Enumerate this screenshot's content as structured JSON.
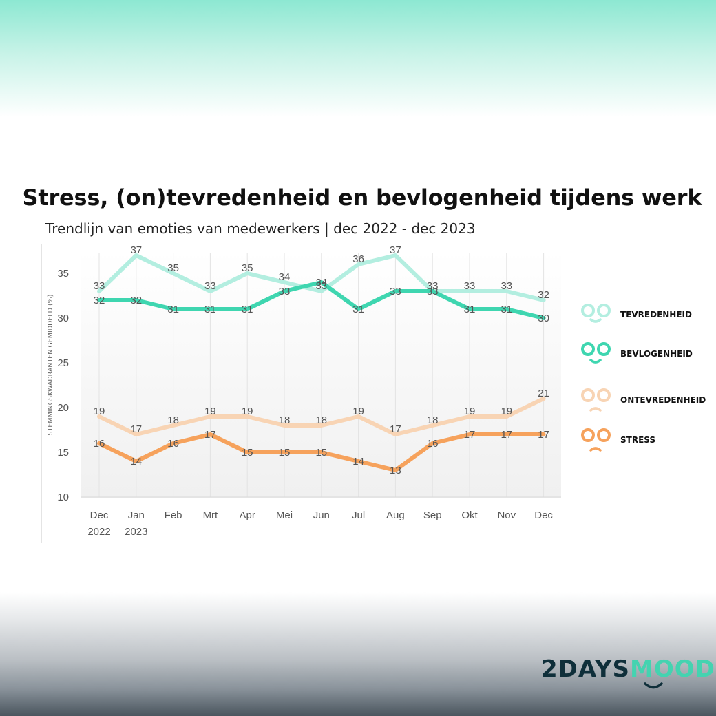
{
  "header": {
    "title": "Stress, (on)tevredenheid en bevlogenheid tijdens werk",
    "subtitle": "Trendlijn van emoties van medewerkers | dec 2022 - dec 2023"
  },
  "brand": {
    "part1": "2DAYS",
    "part2": "MOOD"
  },
  "colors": {
    "tevredenheid": "#b3eee0",
    "bevlogenheid": "#3fd6b0",
    "ontevredenheid": "#f8d4b4",
    "stress": "#f6a25c"
  },
  "chart_data": {
    "type": "line",
    "title": "Stress, (on)tevredenheid en bevlogenheid tijdens werk",
    "subtitle": "Trendlijn van emoties van medewerkers | dec 2022 - dec 2023",
    "ylabel": "STEMMINGSKWADRANTEN GEMIDDELD (%)",
    "xlabel": "",
    "ylim": [
      10,
      37
    ],
    "yticks": [
      10,
      15,
      20,
      25,
      30,
      35
    ],
    "grid": "vertical",
    "legend": "right",
    "categories": [
      [
        "Dec",
        "2022"
      ],
      [
        "Jan",
        "2023"
      ],
      [
        "Feb"
      ],
      [
        "Mrt"
      ],
      [
        "Apr"
      ],
      [
        "Mei"
      ],
      [
        "Jun"
      ],
      [
        "Jul"
      ],
      [
        "Aug"
      ],
      [
        "Sep"
      ],
      [
        "Okt"
      ],
      [
        "Nov"
      ],
      [
        "Dec"
      ]
    ],
    "series": [
      {
        "name": "TEVREDENHEID",
        "color": "#b3eee0",
        "label_pos": "above",
        "values": [
          33,
          37,
          35,
          33,
          35,
          34,
          33,
          36,
          37,
          33,
          33,
          33,
          32
        ]
      },
      {
        "name": "BEVLOGENHEID",
        "color": "#3fd6b0",
        "label_pos": "center",
        "values": [
          32,
          32,
          31,
          31,
          31,
          33,
          34,
          31,
          33,
          33,
          31,
          31,
          30
        ]
      },
      {
        "name": "ONTEVREDENHEID",
        "color": "#f8d4b4",
        "label_pos": "above",
        "values": [
          19,
          17,
          18,
          19,
          19,
          18,
          18,
          19,
          17,
          18,
          19,
          19,
          21
        ]
      },
      {
        "name": "STRESS",
        "color": "#f6a25c",
        "label_pos": "center",
        "values": [
          16,
          14,
          16,
          17,
          15,
          15,
          15,
          14,
          13,
          16,
          17,
          17,
          17
        ]
      }
    ]
  }
}
